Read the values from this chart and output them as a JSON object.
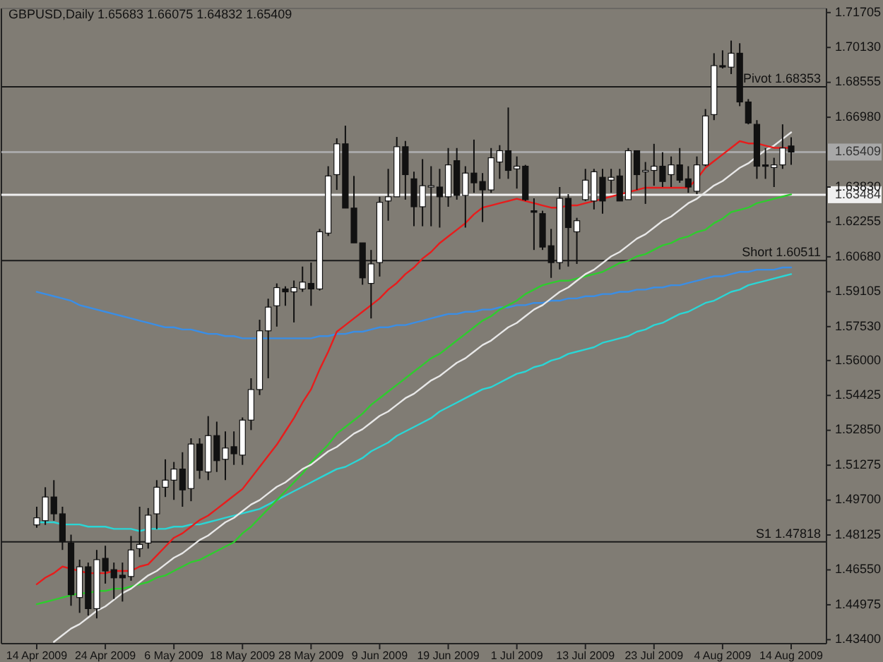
{
  "chart_data": {
    "type": "candlestick",
    "title": "GBPUSD,Daily  1.65683 1.66075 1.64832 1.65409",
    "categories": [
      "14 Apr 2009",
      null,
      null,
      null,
      null,
      null,
      null,
      null,
      "24 Apr 2009",
      null,
      null,
      null,
      null,
      null,
      null,
      null,
      "6 May 2009",
      null,
      null,
      null,
      null,
      null,
      null,
      null,
      "18 May 2009",
      null,
      null,
      null,
      null,
      null,
      null,
      null,
      "28 May 2009",
      null,
      null,
      null,
      null,
      null,
      null,
      null,
      "9 Jun 2009",
      null,
      null,
      null,
      null,
      null,
      null,
      null,
      "19 Jun 2009",
      null,
      null,
      null,
      null,
      null,
      null,
      null,
      "1 Jul 2009",
      null,
      null,
      null,
      null,
      null,
      null,
      null,
      "13 Jul 2009",
      null,
      null,
      null,
      null,
      null,
      null,
      null,
      "23 Jul 2009",
      null,
      null,
      null,
      null,
      null,
      null,
      null,
      "4 Aug 2009",
      null,
      null,
      null,
      null,
      null,
      null,
      null,
      "14 Aug 2009"
    ],
    "ohlc": [
      [
        1.4858,
        1.494,
        1.4845,
        1.489
      ],
      [
        1.4877,
        1.5028,
        1.4858,
        1.4984
      ],
      [
        1.4984,
        1.506,
        1.4877,
        1.4908
      ],
      [
        1.4908,
        1.494,
        1.4745,
        1.4782
      ],
      [
        1.4776,
        1.4814,
        1.4493,
        1.4543
      ],
      [
        1.453,
        1.4701,
        1.4461,
        1.4669
      ],
      [
        1.4669,
        1.4688,
        1.4449,
        1.448
      ],
      [
        1.448,
        1.4745,
        1.4436,
        1.4701
      ],
      [
        1.4707,
        1.4764,
        1.4593,
        1.465
      ],
      [
        1.4656,
        1.4688,
        1.4524,
        1.4619
      ],
      [
        1.4631,
        1.4688,
        1.4512,
        1.4619
      ],
      [
        1.4625,
        1.4808,
        1.4606,
        1.4745
      ],
      [
        1.4751,
        1.494,
        1.4713,
        1.477
      ],
      [
        1.4776,
        1.4934,
        1.4751,
        1.4902
      ],
      [
        1.4908,
        1.506,
        1.4839,
        1.5028
      ],
      [
        1.5028,
        1.5154,
        1.4984,
        1.506
      ],
      [
        1.506,
        1.5142,
        1.4971,
        1.511
      ],
      [
        1.511,
        1.5186,
        1.494,
        1.5016
      ],
      [
        1.5022,
        1.5249,
        1.4965,
        1.5223
      ],
      [
        1.5223,
        1.5249,
        1.5066,
        1.5104
      ],
      [
        1.5097,
        1.5349,
        1.506,
        1.5261
      ],
      [
        1.5261,
        1.5324,
        1.5097,
        1.5148
      ],
      [
        1.5154,
        1.528,
        1.506,
        1.5205
      ],
      [
        1.5211,
        1.528,
        1.5129,
        1.5179
      ],
      [
        1.5173,
        1.5343,
        1.5129,
        1.5331
      ],
      [
        1.5331,
        1.552,
        1.5286,
        1.5469
      ],
      [
        1.5469,
        1.5784,
        1.5444,
        1.5734
      ],
      [
        1.5734,
        1.5879,
        1.552,
        1.5841
      ],
      [
        1.5847,
        1.5948,
        1.5753,
        1.5929
      ],
      [
        1.5923,
        1.5935,
        1.5847,
        1.591
      ],
      [
        1.591,
        1.5961,
        1.5772,
        1.5929
      ],
      [
        1.5923,
        1.6024,
        1.591,
        1.5954
      ],
      [
        1.5948,
        1.6042,
        1.5847,
        1.5923
      ],
      [
        1.5923,
        1.6194,
        1.5916,
        1.6181
      ],
      [
        1.6175,
        1.6477,
        1.6162,
        1.6433
      ],
      [
        1.6439,
        1.6603,
        1.637,
        1.6578
      ],
      [
        1.6578,
        1.666,
        1.6288,
        1.6288
      ],
      [
        1.6288,
        1.6433,
        1.6131,
        1.6131
      ],
      [
        1.6131,
        1.6131,
        1.5942,
        1.5973
      ],
      [
        1.5948,
        1.6099,
        1.579,
        1.6036
      ],
      [
        1.6042,
        1.6339,
        1.5979,
        1.6314
      ],
      [
        1.632,
        1.6465,
        1.6231,
        1.6339
      ],
      [
        1.6339,
        1.6609,
        1.6339,
        1.6565
      ],
      [
        1.6565,
        1.6591,
        1.6326,
        1.6439
      ],
      [
        1.642,
        1.6452,
        1.6206,
        1.6294
      ],
      [
        1.6294,
        1.6509,
        1.6206,
        1.6389
      ],
      [
        1.6383,
        1.6477,
        1.6206,
        1.6389
      ],
      [
        1.6383,
        1.6465,
        1.62,
        1.6339
      ],
      [
        1.6339,
        1.6559,
        1.6294,
        1.6483
      ],
      [
        1.6502,
        1.6559,
        1.6326,
        1.6345
      ],
      [
        1.6345,
        1.6477,
        1.62,
        1.6446
      ],
      [
        1.6446,
        1.6597,
        1.6357,
        1.6402
      ],
      [
        1.6408,
        1.6446,
        1.6225,
        1.637
      ],
      [
        1.637,
        1.6559,
        1.6357,
        1.6515
      ],
      [
        1.6496,
        1.6572,
        1.642,
        1.6547
      ],
      [
        1.6547,
        1.6742,
        1.642,
        1.6458
      ],
      [
        1.6465,
        1.6521,
        1.6376,
        1.6477
      ],
      [
        1.6477,
        1.6483,
        1.632,
        1.6326
      ],
      [
        1.6276,
        1.6332,
        1.6099,
        1.6269
      ],
      [
        1.6263,
        1.6276,
        1.6099,
        1.6112
      ],
      [
        1.6118,
        1.6194,
        1.5973,
        1.6042
      ],
      [
        1.6042,
        1.6383,
        1.6011,
        1.6332
      ],
      [
        1.6332,
        1.6351,
        1.6024,
        1.62
      ],
      [
        1.6181,
        1.6244,
        1.6036,
        1.6231
      ],
      [
        1.6326,
        1.6465,
        1.632,
        1.6414
      ],
      [
        1.632,
        1.6465,
        1.6282,
        1.6452
      ],
      [
        1.6427,
        1.6465,
        1.6263,
        1.632
      ],
      [
        1.6414,
        1.6465,
        1.6357,
        1.6427
      ],
      [
        1.6433,
        1.6465,
        1.632,
        1.632
      ],
      [
        1.6326,
        1.6559,
        1.6326,
        1.6547
      ],
      [
        1.6547,
        1.6547,
        1.637,
        1.6439
      ],
      [
        1.6452,
        1.6496,
        1.6307,
        1.6458
      ],
      [
        1.6458,
        1.6578,
        1.6389,
        1.6477
      ],
      [
        1.6477,
        1.654,
        1.6383,
        1.6408
      ],
      [
        1.6439,
        1.6521,
        1.6383,
        1.6483
      ],
      [
        1.6483,
        1.6559,
        1.6402,
        1.6414
      ],
      [
        1.642,
        1.6477,
        1.6357,
        1.6383
      ],
      [
        1.6364,
        1.6521,
        1.6351,
        1.6483
      ],
      [
        1.6483,
        1.6735,
        1.6477,
        1.6704
      ],
      [
        1.671,
        1.6987,
        1.6685,
        1.6931
      ],
      [
        1.6931,
        1.7,
        1.6918,
        1.6928
      ],
      [
        1.6924,
        1.7044,
        1.6893,
        1.6987
      ],
      [
        1.6987,
        1.7032,
        1.6748,
        1.6767
      ],
      [
        1.6767,
        1.678,
        1.6666,
        1.6672
      ],
      [
        1.6666,
        1.6685,
        1.642,
        1.6477
      ],
      [
        1.6483,
        1.6559,
        1.642,
        1.6477
      ],
      [
        1.6471,
        1.6515,
        1.6383,
        1.6483
      ],
      [
        1.6483,
        1.6666,
        1.6465,
        1.6559
      ],
      [
        1.65683,
        1.66075,
        1.64832,
        1.65409
      ]
    ],
    "series": [
      {
        "type": "line",
        "color": "#3a8ee6",
        "values": [
          1.591,
          1.59,
          1.589,
          1.588,
          1.587,
          1.585,
          1.584,
          1.583,
          1.582,
          1.581,
          1.58,
          1.579,
          1.578,
          1.577,
          1.576,
          1.575,
          1.575,
          1.574,
          1.574,
          1.573,
          1.572,
          1.572,
          1.571,
          1.571,
          1.57,
          1.57,
          1.57,
          1.57,
          1.57,
          1.57,
          1.57,
          1.57,
          1.57,
          1.571,
          1.571,
          1.572,
          1.572,
          1.573,
          1.573,
          1.574,
          1.575,
          1.575,
          1.576,
          1.576,
          1.577,
          1.578,
          1.579,
          1.58,
          1.581,
          1.581,
          1.582,
          1.582,
          1.583,
          1.583,
          1.584,
          1.584,
          1.585,
          1.585,
          1.586,
          1.586,
          1.587,
          1.587,
          1.588,
          1.588,
          1.589,
          1.589,
          1.59,
          1.59,
          1.591,
          1.591,
          1.592,
          1.592,
          1.593,
          1.593,
          1.594,
          1.594,
          1.595,
          1.596,
          1.597,
          1.598,
          1.598,
          1.599,
          1.6,
          1.6,
          1.601,
          1.601,
          1.601,
          1.602,
          1.602
        ]
      },
      {
        "type": "line",
        "color": "#2ad6d6",
        "values": [
          1.487,
          1.487,
          1.487,
          1.486,
          1.486,
          1.486,
          1.485,
          1.485,
          1.485,
          1.484,
          1.484,
          1.484,
          1.483,
          1.484,
          1.484,
          1.484,
          1.485,
          1.485,
          1.486,
          1.486,
          1.487,
          1.488,
          1.489,
          1.49,
          1.491,
          1.492,
          1.493,
          1.495,
          1.497,
          1.499,
          1.501,
          1.503,
          1.505,
          1.507,
          1.509,
          1.511,
          1.512,
          1.514,
          1.516,
          1.519,
          1.521,
          1.523,
          1.526,
          1.528,
          1.53,
          1.532,
          1.534,
          1.537,
          1.539,
          1.541,
          1.543,
          1.545,
          1.547,
          1.548,
          1.55,
          1.552,
          1.554,
          1.555,
          1.557,
          1.558,
          1.56,
          1.561,
          1.563,
          1.564,
          1.565,
          1.566,
          1.568,
          1.569,
          1.57,
          1.571,
          1.573,
          1.574,
          1.576,
          1.577,
          1.579,
          1.581,
          1.582,
          1.584,
          1.586,
          1.587,
          1.589,
          1.591,
          1.592,
          1.594,
          1.595,
          1.596,
          1.597,
          1.598,
          1.599
        ]
      },
      {
        "type": "line",
        "color": "#2ecc2e",
        "values": [
          1.45,
          1.451,
          1.452,
          1.453,
          1.454,
          1.455,
          1.455,
          1.456,
          1.456,
          1.457,
          1.457,
          1.458,
          1.459,
          1.46,
          1.462,
          1.463,
          1.465,
          1.467,
          1.469,
          1.47,
          1.472,
          1.474,
          1.476,
          1.478,
          1.482,
          1.485,
          1.489,
          1.493,
          1.497,
          1.501,
          1.505,
          1.509,
          1.514,
          1.518,
          1.522,
          1.527,
          1.53,
          1.533,
          1.536,
          1.54,
          1.543,
          1.546,
          1.549,
          1.552,
          1.555,
          1.558,
          1.561,
          1.563,
          1.566,
          1.569,
          1.572,
          1.575,
          1.578,
          1.58,
          1.583,
          1.585,
          1.587,
          1.59,
          1.592,
          1.594,
          1.595,
          1.596,
          1.596,
          1.597,
          1.598,
          1.599,
          1.6,
          1.602,
          1.604,
          1.605,
          1.607,
          1.608,
          1.61,
          1.612,
          1.613,
          1.615,
          1.616,
          1.618,
          1.619,
          1.622,
          1.624,
          1.627,
          1.628,
          1.629,
          1.631,
          1.632,
          1.633,
          1.634,
          1.635
        ]
      },
      {
        "type": "line",
        "color": "#e8e8e8",
        "values": [
          null,
          null,
          1.433,
          1.436,
          1.439,
          1.441,
          1.444,
          1.447,
          1.449,
          1.452,
          1.455,
          1.457,
          1.46,
          1.463,
          1.465,
          1.468,
          1.471,
          1.473,
          1.476,
          1.479,
          1.481,
          1.484,
          1.487,
          1.489,
          1.492,
          1.495,
          1.497,
          1.5,
          1.503,
          1.505,
          1.508,
          1.511,
          1.513,
          1.516,
          1.519,
          1.521,
          1.524,
          1.527,
          1.529,
          1.532,
          1.535,
          1.537,
          1.54,
          1.543,
          1.545,
          1.548,
          1.551,
          1.553,
          1.556,
          1.559,
          1.561,
          1.564,
          1.567,
          1.569,
          1.572,
          1.575,
          1.577,
          1.58,
          1.583,
          1.585,
          1.588,
          1.591,
          1.593,
          1.596,
          1.599,
          1.601,
          1.604,
          1.607,
          1.609,
          1.612,
          1.615,
          1.617,
          1.62,
          1.623,
          1.625,
          1.628,
          1.631,
          1.633,
          1.636,
          1.639,
          1.641,
          1.644,
          1.647,
          1.649,
          1.652,
          1.655,
          1.657,
          1.66,
          1.663
        ]
      },
      {
        "type": "line",
        "color": "#e81c1c",
        "values": [
          1.459,
          1.462,
          1.464,
          1.467,
          1.466,
          1.465,
          1.464,
          1.464,
          1.464,
          1.465,
          1.465,
          1.465,
          1.467,
          1.468,
          1.472,
          1.476,
          1.48,
          1.482,
          1.485,
          1.488,
          1.49,
          1.493,
          1.496,
          1.499,
          1.502,
          1.507,
          1.512,
          1.517,
          1.522,
          1.528,
          1.534,
          1.541,
          1.547,
          1.556,
          1.564,
          1.573,
          1.576,
          1.579,
          1.582,
          1.585,
          1.588,
          1.592,
          1.595,
          1.599,
          1.602,
          1.606,
          1.609,
          1.613,
          1.616,
          1.619,
          1.622,
          1.626,
          1.629,
          1.63,
          1.631,
          1.632,
          1.633,
          1.632,
          1.631,
          1.63,
          1.629,
          1.629,
          1.63,
          1.63,
          1.631,
          1.632,
          1.633,
          1.634,
          1.635,
          1.636,
          1.637,
          1.638,
          1.638,
          1.638,
          1.638,
          1.638,
          1.638,
          1.642,
          1.647,
          1.65,
          1.653,
          1.656,
          1.659,
          1.658,
          1.658,
          1.657,
          1.656,
          1.656,
          1.656
        ]
      }
    ],
    "ref_lines": [
      {
        "axis": "y",
        "value": 1.68353,
        "label": "Pivot  1.68353",
        "color": "#1a1a1a"
      },
      {
        "axis": "y",
        "value": 1.65409,
        "label": "1.65409",
        "color": "#a8a8a8"
      },
      {
        "axis": "y",
        "value": 1.63484,
        "label": "1.63484",
        "color": "#f0f0f0"
      },
      {
        "axis": "y",
        "value": 1.60511,
        "label": "Short  1.60511",
        "color": "#1a1a1a"
      },
      {
        "axis": "y",
        "value": 1.47818,
        "label": "S1  1.47818",
        "color": "#1a1a1a"
      }
    ],
    "ylim": [
      1.4322,
      1.7189
    ],
    "yticks": [
      {
        "value": 1.71705,
        "label": "1.71705"
      },
      {
        "value": 1.7013,
        "label": "1.70130"
      },
      {
        "value": 1.68555,
        "label": "1.68555"
      },
      {
        "value": 1.6698,
        "label": "1.66980"
      },
      {
        "value": 1.6383,
        "label": "1.63830"
      },
      {
        "value": 1.62255,
        "label": "1.62255"
      },
      {
        "value": 1.6068,
        "label": "1.60680"
      },
      {
        "value": 1.59105,
        "label": "1.59105"
      },
      {
        "value": 1.5753,
        "label": "1.57530"
      },
      {
        "value": 1.56,
        "label": "1.56000"
      },
      {
        "value": 1.54425,
        "label": "1.54425"
      },
      {
        "value": 1.5285,
        "label": "1.52850"
      },
      {
        "value": 1.51275,
        "label": "1.51275"
      },
      {
        "value": 1.497,
        "label": "1.49700"
      },
      {
        "value": 1.48125,
        "label": "1.48125"
      },
      {
        "value": 1.4655,
        "label": "1.46550"
      },
      {
        "value": 1.44975,
        "label": "1.44975"
      },
      {
        "value": 1.434,
        "label": "1.43400"
      }
    ]
  }
}
